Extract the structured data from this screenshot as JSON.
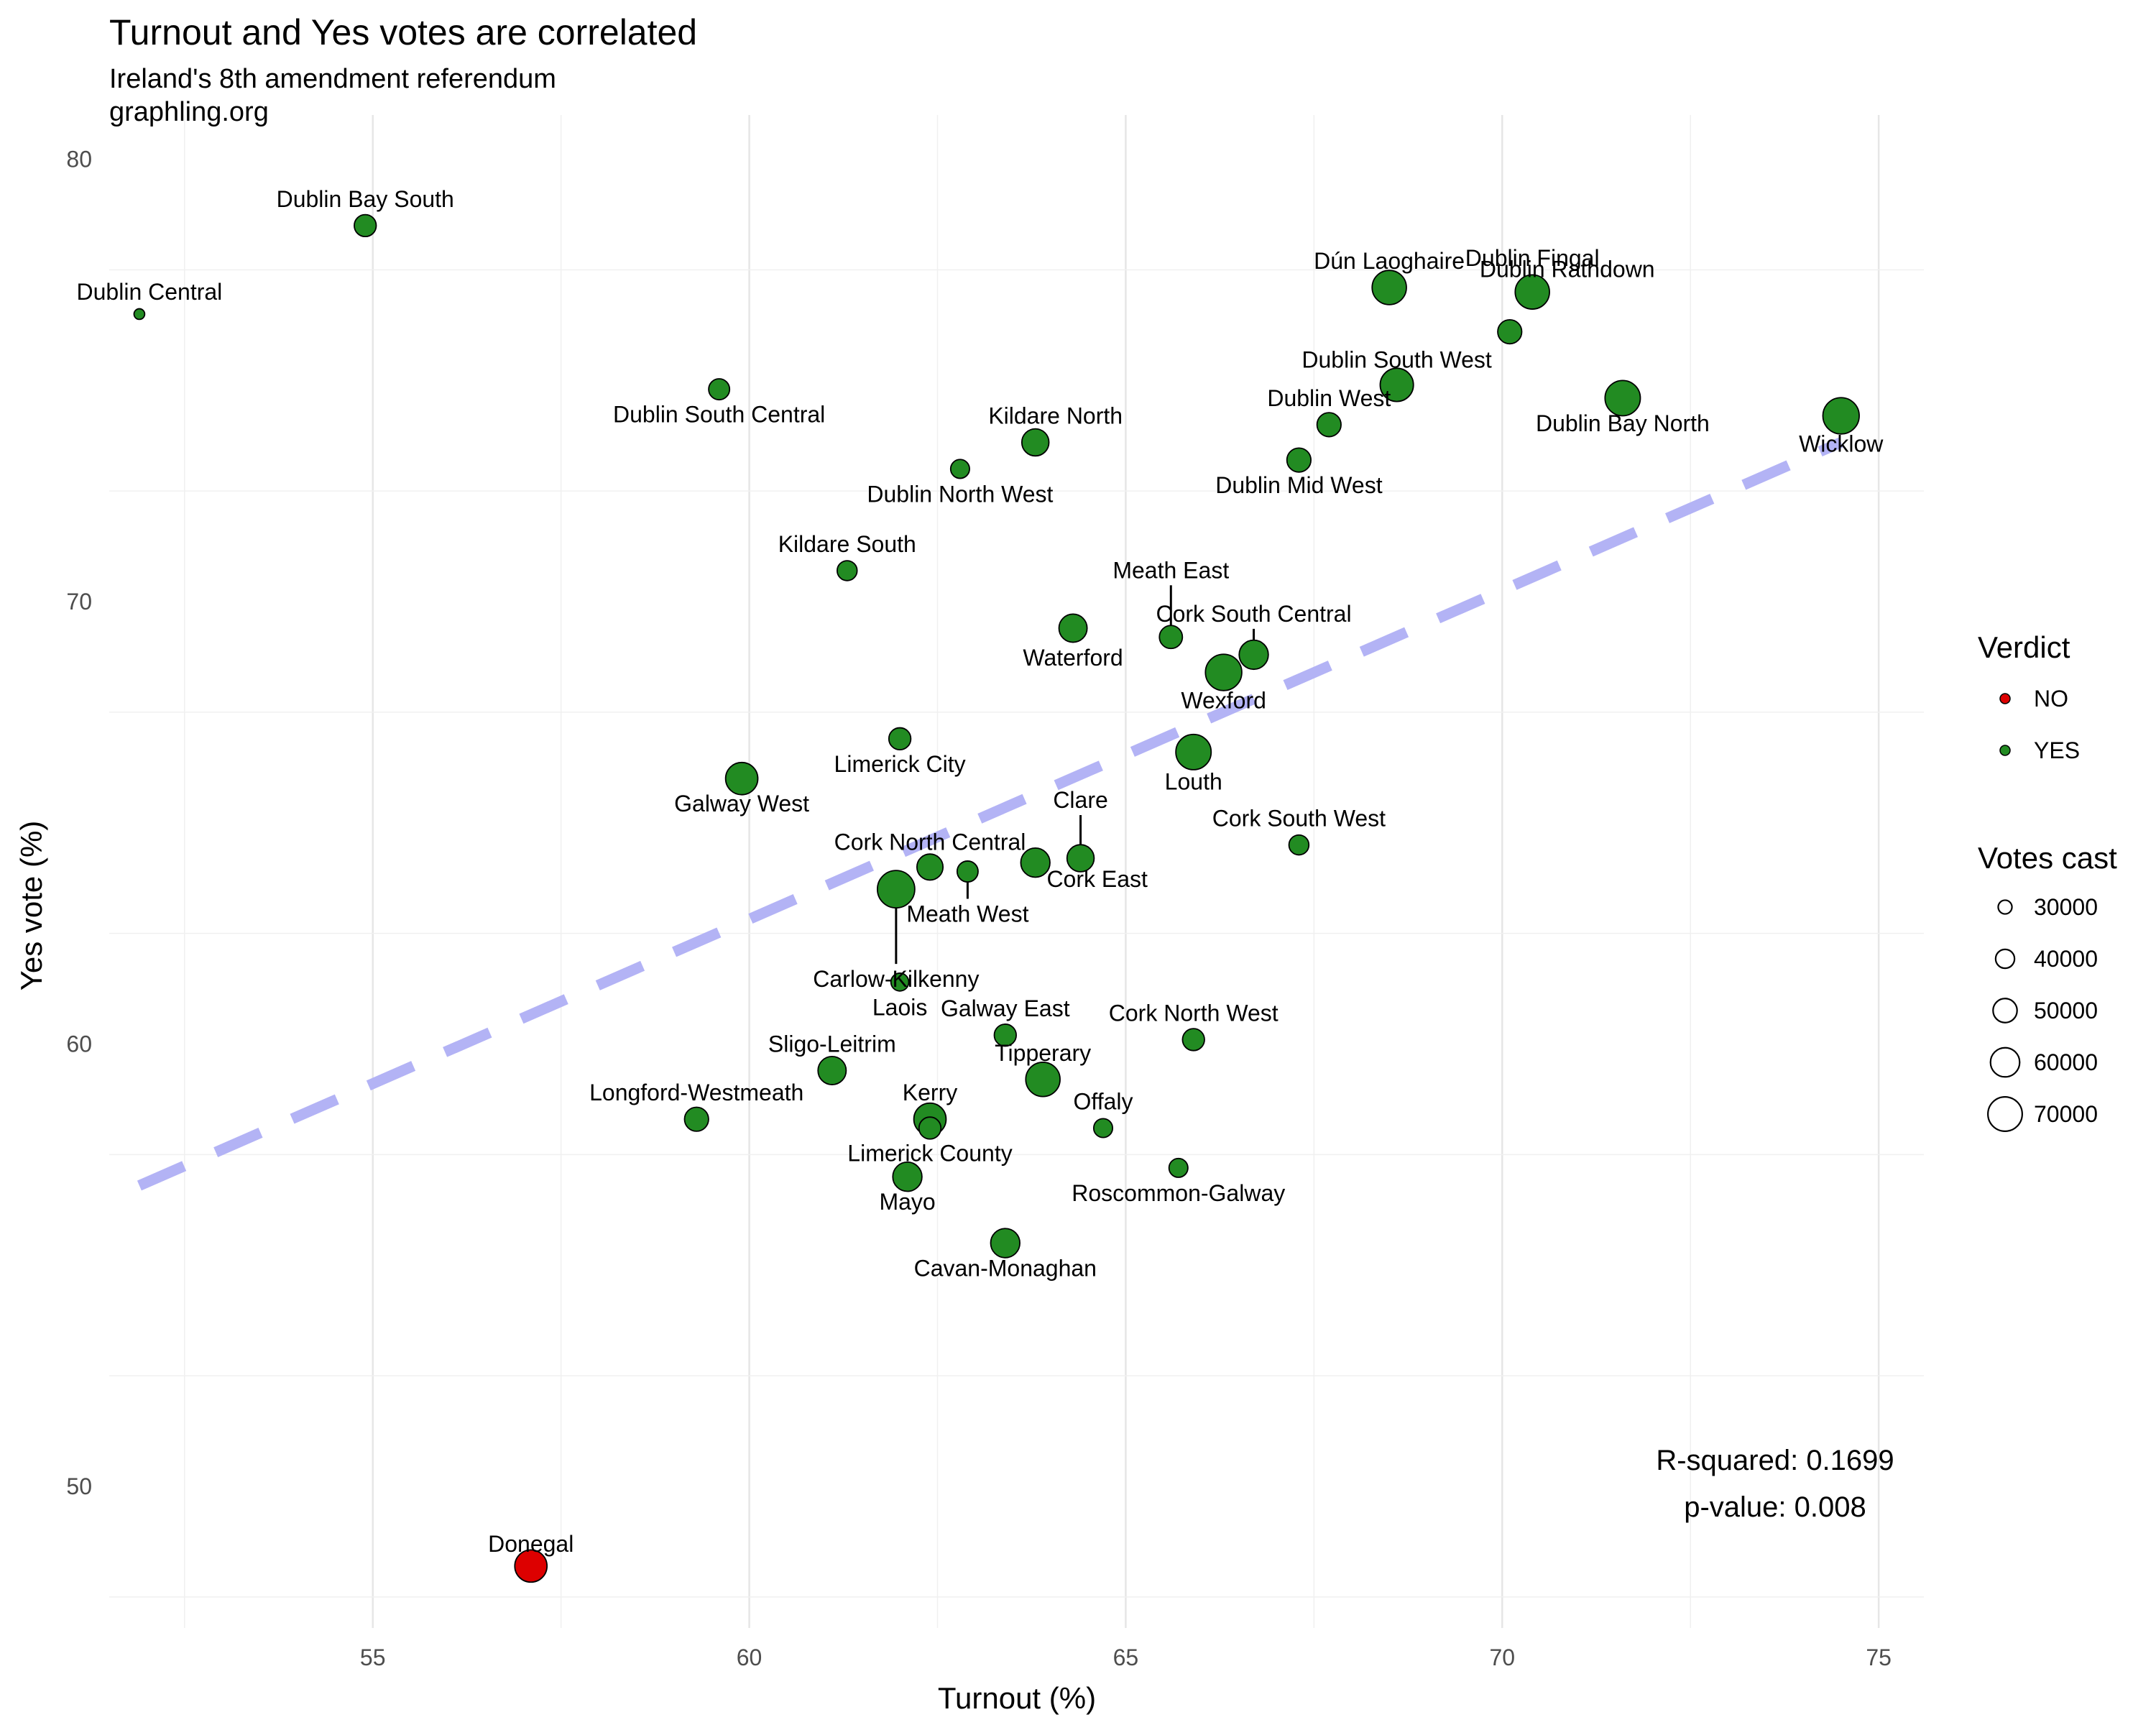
{
  "chart_data": {
    "type": "scatter",
    "title": "Turnout and Yes votes are correlated",
    "subtitle": "Ireland's 8th amendment referendum",
    "source": "graphling.org",
    "xlabel": "Turnout (%)",
    "ylabel": "Yes vote (%)",
    "xlim": [
      51.5,
      75.6
    ],
    "ylim": [
      46.8,
      81
    ],
    "x_ticks": [
      55,
      60,
      65,
      70,
      75
    ],
    "y_ticks": [
      50,
      60,
      70,
      80
    ],
    "grid": true,
    "colors": {
      "YES": "#228B22",
      "NO": "#DD0000",
      "trend": "#b3b3f5"
    },
    "trend_line": {
      "x": [
        51.9,
        74.5
      ],
      "y": [
        56.8,
        73.6
      ]
    },
    "annotations": [
      "R-squared: 0.1699",
      "p-value: 0.008"
    ],
    "legend_color": {
      "title": "Verdict",
      "items": [
        "NO",
        "YES"
      ],
      "position": "right"
    },
    "legend_size": {
      "title": "Votes cast",
      "items": [
        30000,
        40000,
        50000,
        60000,
        70000
      ]
    },
    "points": [
      {
        "label": "Dublin Bay South",
        "x": 54.9,
        "y": 78.5,
        "votes": 46000,
        "verdict": "YES"
      },
      {
        "label": "Dublin Central",
        "x": 51.9,
        "y": 76.5,
        "votes": 24000,
        "verdict": "YES"
      },
      {
        "label": "Dublin South Central",
        "x": 59.6,
        "y": 74.8,
        "votes": 44000,
        "verdict": "YES"
      },
      {
        "label": "Kildare North",
        "x": 63.8,
        "y": 73.6,
        "votes": 56000,
        "verdict": "YES"
      },
      {
        "label": "Dublin North West",
        "x": 62.8,
        "y": 73.0,
        "votes": 40000,
        "verdict": "YES"
      },
      {
        "label": "Kildare South",
        "x": 61.3,
        "y": 70.7,
        "votes": 42000,
        "verdict": "YES"
      },
      {
        "label": "Dublin Fingal",
        "x": 70.4,
        "y": 77.0,
        "votes": 70000,
        "verdict": "YES"
      },
      {
        "label": "Dún Laoghaire",
        "x": 68.5,
        "y": 77.1,
        "votes": 70000,
        "verdict": "YES"
      },
      {
        "label": "Dublin Rathdown",
        "x": 70.1,
        "y": 76.1,
        "votes": 50000,
        "verdict": "YES"
      },
      {
        "label": "Dublin South West",
        "x": 68.6,
        "y": 74.9,
        "votes": 68000,
        "verdict": "YES"
      },
      {
        "label": "Dublin West",
        "x": 67.7,
        "y": 74.0,
        "votes": 50000,
        "verdict": "YES"
      },
      {
        "label": "Dublin Bay North",
        "x": 71.6,
        "y": 74.6,
        "votes": 72000,
        "verdict": "YES"
      },
      {
        "label": "Dublin Mid West",
        "x": 67.3,
        "y": 73.2,
        "votes": 50000,
        "verdict": "YES"
      },
      {
        "label": "Wicklow",
        "x": 74.5,
        "y": 74.2,
        "votes": 74000,
        "verdict": "YES"
      },
      {
        "label": "Meath East",
        "x": 65.6,
        "y": 69.2,
        "votes": 48000,
        "verdict": "YES"
      },
      {
        "label": "Cork South Central",
        "x": 66.7,
        "y": 68.8,
        "votes": 60000,
        "verdict": "YES"
      },
      {
        "label": "Waterford",
        "x": 64.3,
        "y": 69.4,
        "votes": 58000,
        "verdict": "YES"
      },
      {
        "label": "Wexford",
        "x": 66.3,
        "y": 68.4,
        "votes": 74000,
        "verdict": "YES"
      },
      {
        "label": "Limerick City",
        "x": 62.0,
        "y": 66.9,
        "votes": 46000,
        "verdict": "YES"
      },
      {
        "label": "Louth",
        "x": 65.9,
        "y": 66.6,
        "votes": 72000,
        "verdict": "YES"
      },
      {
        "label": "Galway West",
        "x": 59.9,
        "y": 66.0,
        "votes": 66000,
        "verdict": "YES"
      },
      {
        "label": "Clare",
        "x": 64.4,
        "y": 64.2,
        "votes": 56000,
        "verdict": "YES"
      },
      {
        "label": "Cork South West",
        "x": 67.3,
        "y": 64.5,
        "votes": 42000,
        "verdict": "YES"
      },
      {
        "label": "Cork North Central",
        "x": 62.4,
        "y": 64.0,
        "votes": 54000,
        "verdict": "YES"
      },
      {
        "label": "Cork East",
        "x": 63.8,
        "y": 64.1,
        "votes": 60000,
        "verdict": "YES"
      },
      {
        "label": "Meath West",
        "x": 62.9,
        "y": 63.9,
        "votes": 44000,
        "verdict": "YES"
      },
      {
        "label": "Carlow-Kilkenny",
        "x": 61.95,
        "y": 63.5,
        "votes": 76000,
        "verdict": "YES"
      },
      {
        "label": "Laois",
        "x": 62.0,
        "y": 61.4,
        "votes": 38000,
        "verdict": "YES"
      },
      {
        "label": "Galway East",
        "x": 63.4,
        "y": 60.2,
        "votes": 46000,
        "verdict": "YES"
      },
      {
        "label": "Cork North West",
        "x": 65.9,
        "y": 60.1,
        "votes": 46000,
        "verdict": "YES"
      },
      {
        "label": "Sligo-Leitrim",
        "x": 61.1,
        "y": 59.4,
        "votes": 58000,
        "verdict": "YES"
      },
      {
        "label": "Tipperary",
        "x": 63.9,
        "y": 59.2,
        "votes": 70000,
        "verdict": "YES"
      },
      {
        "label": "Longford-Westmeath",
        "x": 59.3,
        "y": 58.3,
        "votes": 50000,
        "verdict": "YES"
      },
      {
        "label": "Kerry",
        "x": 62.4,
        "y": 58.3,
        "votes": 66000,
        "verdict": "YES"
      },
      {
        "label": "Limerick County",
        "x": 62.4,
        "y": 58.1,
        "votes": 46000,
        "verdict": "YES"
      },
      {
        "label": "Offaly",
        "x": 64.7,
        "y": 58.1,
        "votes": 40000,
        "verdict": "YES"
      },
      {
        "label": "Mayo",
        "x": 62.1,
        "y": 57.0,
        "votes": 60000,
        "verdict": "YES"
      },
      {
        "label": "Roscommon-Galway",
        "x": 65.7,
        "y": 57.2,
        "votes": 40000,
        "verdict": "YES"
      },
      {
        "label": "Cavan-Monaghan",
        "x": 63.4,
        "y": 55.5,
        "votes": 60000,
        "verdict": "YES"
      },
      {
        "label": "Donegal",
        "x": 57.1,
        "y": 48.2,
        "votes": 66000,
        "verdict": "NO"
      }
    ]
  }
}
